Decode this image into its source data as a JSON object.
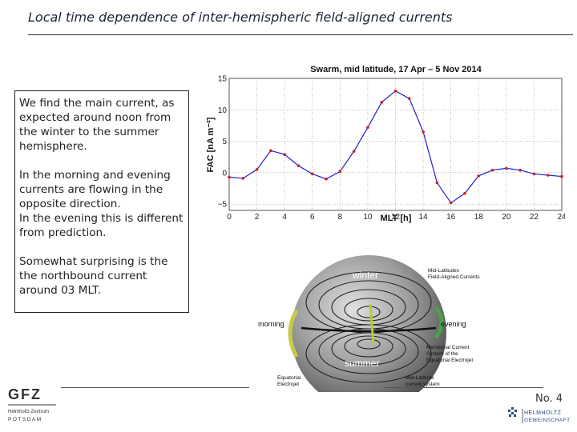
{
  "slide": {
    "title": "Local time dependence of inter-hemispheric field-aligned currents",
    "page_label": "No. 4"
  },
  "textbox": {
    "para1": "We find the main current, as expected around noon from the winter to the summer hemisphere.",
    "para2": "In the morning and evening currents are flowing in the opposite direction.\nIn the evening this is different from prediction.",
    "para3": "Somewhat surprising is the the northbound current around 03 MLT."
  },
  "chart_data": {
    "type": "line",
    "title": "Swarm, mid latitude, 17 Apr – 5 Nov 2014",
    "xlabel": "MLT  [h]",
    "ylabel": "FAC  [nA m⁻²]",
    "xlim": [
      0,
      24
    ],
    "ylim": [
      -6,
      15
    ],
    "xticks": [
      0,
      2,
      4,
      6,
      8,
      10,
      12,
      14,
      16,
      18,
      20,
      22,
      24
    ],
    "yticks": [
      -5,
      0,
      5,
      10,
      15
    ],
    "grid": true,
    "color": "#1f1fd0",
    "marker_color": "#d02020",
    "x": [
      0,
      1,
      2,
      3,
      4,
      5,
      6,
      7,
      8,
      9,
      10,
      11,
      12,
      13,
      14,
      15,
      16,
      17,
      18,
      19,
      20,
      21,
      22,
      23,
      24
    ],
    "values": [
      -0.7,
      -0.9,
      0.5,
      3.5,
      2.9,
      1.1,
      -0.2,
      -1.0,
      0.2,
      3.4,
      7.2,
      11.2,
      13.0,
      11.8,
      6.5,
      -1.6,
      -4.8,
      -3.3,
      -0.5,
      0.4,
      0.7,
      0.4,
      -0.2,
      -0.4,
      -0.6
    ]
  },
  "diagram": {
    "winter": "winter",
    "summer": "summer",
    "morning": "morning",
    "evening": "evening",
    "mid_latitudes": "Mid-Latitudes\nField-Aligned Currents",
    "meridional": "Meridional Current\nSystem of the\nEquatorial Electrojet",
    "equatorial": "Equatorial\nElectrojet",
    "mid_latitude_current": "Mid-Latitude\ncurrent system"
  },
  "logos": {
    "gfz": "GFZ",
    "gfz_sub1": "Helmholtz-Zentrum",
    "gfz_sub2": "POTSDAM",
    "helmholtz1": "HELMHOLTZ",
    "helmholtz2": "GEMEINSCHAFT"
  }
}
